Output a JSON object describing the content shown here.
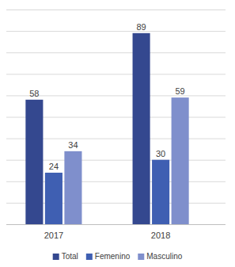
{
  "chart_data": {
    "type": "bar",
    "categories": [
      "2017",
      "2018"
    ],
    "series": [
      {
        "name": "Total",
        "color": "#34488f",
        "values": [
          58,
          89
        ]
      },
      {
        "name": "Femenino",
        "color": "#3f5fb2",
        "values": [
          24,
          30
        ]
      },
      {
        "name": "Masculino",
        "color": "#7f8fcc",
        "values": [
          34,
          59
        ]
      }
    ],
    "ylim": [
      0,
      100
    ],
    "yticks": [
      0,
      10,
      20,
      30,
      40,
      50,
      60,
      70,
      80,
      90,
      100
    ],
    "grid": true,
    "legend": "bottom",
    "data_labels": true,
    "tick_labels": "x"
  }
}
